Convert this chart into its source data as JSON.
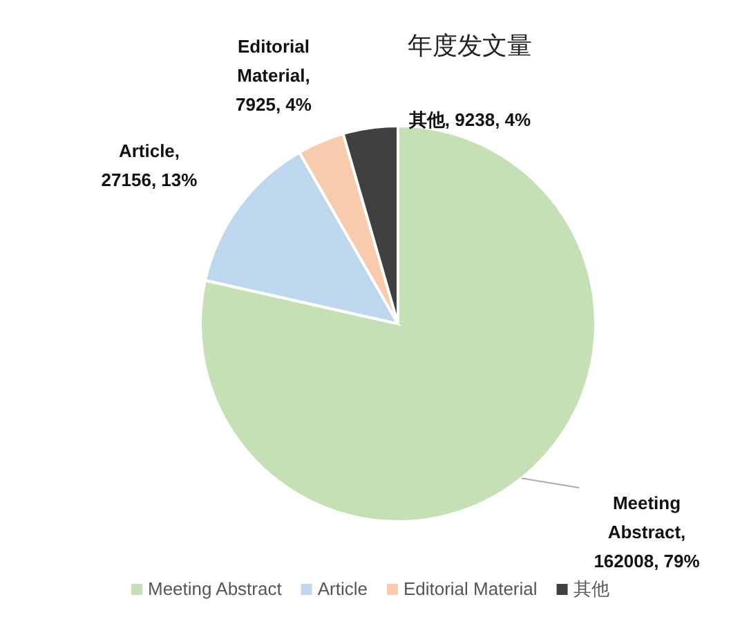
{
  "chart_data": {
    "type": "pie",
    "title": "年度发文量",
    "categories": [
      "Meeting Abstract",
      "Article",
      "Editorial Material",
      "其他"
    ],
    "values": [
      162008,
      27156,
      7925,
      9238
    ],
    "colors": [
      "#c5e0b4",
      "#bdd7ee",
      "#f8cbad",
      "#404040"
    ],
    "value_labels": [
      "Meeting Abstract, 162008, 79%",
      "Article, 27156, 13%",
      "Editorial Material, 7925, 4%",
      "其他, 9238, 4%"
    ],
    "legend": "bottom"
  }
}
